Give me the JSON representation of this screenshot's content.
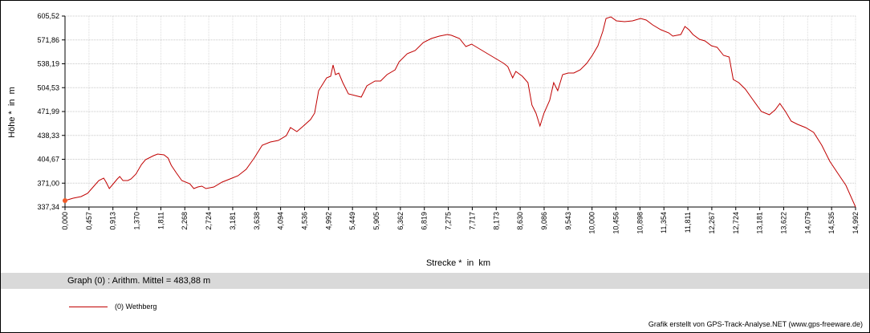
{
  "chart_data": {
    "type": "line",
    "xlabel": "Strecke *  in  km",
    "ylabel": "Höhe *  in  m",
    "xlim": [
      0,
      14.992
    ],
    "ylim": [
      337.34,
      605.52
    ],
    "grid": true,
    "x_ticks": [
      "0,000",
      "0,457",
      "0,913",
      "1,370",
      "1,811",
      "2,268",
      "2,724",
      "3,181",
      "3,638",
      "4,094",
      "4,536",
      "4,992",
      "5,449",
      "5,905",
      "6,362",
      "6,819",
      "7,275",
      "7,717",
      "8,173",
      "8,630",
      "9,086",
      "9,543",
      "10,000",
      "10,456",
      "10,898",
      "11,354",
      "11,811",
      "12,267",
      "12,724",
      "13,181",
      "13,622",
      "14,079",
      "14,535",
      "14,992"
    ],
    "y_ticks": [
      "605,52",
      "571,86",
      "538,19",
      "504,53",
      "471,99",
      "438,33",
      "404,67",
      "371,00",
      "337,34"
    ],
    "series": [
      {
        "name": "(0) Wethberg",
        "color": "#c00000",
        "x": [
          0,
          0.153,
          0.305,
          0.427,
          0.534,
          0.641,
          0.733,
          0.779,
          0.84,
          0.916,
          0.992,
          1.038,
          1.099,
          1.191,
          1.252,
          1.344,
          1.45,
          1.527,
          1.679,
          1.756,
          1.878,
          1.954,
          2.015,
          2.107,
          2.214,
          2.366,
          2.443,
          2.519,
          2.595,
          2.672,
          2.824,
          2.977,
          3.13,
          3.282,
          3.435,
          3.588,
          3.74,
          3.893,
          4.046,
          4.198,
          4.275,
          4.397,
          4.504,
          4.656,
          4.733,
          4.809,
          4.885,
          4.962,
          5.038,
          5.084,
          5.13,
          5.191,
          5.267,
          5.374,
          5.496,
          5.618,
          5.725,
          5.878,
          5.985,
          6.107,
          6.26,
          6.336,
          6.488,
          6.641,
          6.794,
          6.946,
          7.099,
          7.252,
          7.328,
          7.481,
          7.603,
          7.71,
          7.863,
          8.015,
          8.168,
          8.321,
          8.397,
          8.489,
          8.55,
          8.672,
          8.779,
          8.855,
          8.932,
          9.008,
          9.084,
          9.191,
          9.268,
          9.344,
          9.436,
          9.542,
          9.649,
          9.771,
          9.893,
          10.0,
          10.107,
          10.199,
          10.26,
          10.351,
          10.458,
          10.611,
          10.763,
          10.916,
          11.023,
          11.145,
          11.298,
          11.45,
          11.527,
          11.679,
          11.756,
          11.832,
          11.908,
          12.031,
          12.137,
          12.259,
          12.366,
          12.488,
          12.595,
          12.672,
          12.778,
          12.9,
          13.053,
          13.206,
          13.358,
          13.465,
          13.557,
          13.664,
          13.771,
          13.893,
          14.046,
          14.198,
          14.351,
          14.504,
          14.656,
          14.809,
          14.992
        ],
        "y": [
          346.4,
          349.7,
          352.0,
          356.5,
          365.5,
          374.5,
          377.9,
          372.3,
          363.3,
          370.0,
          376.8,
          380.2,
          374.5,
          374.5,
          376.8,
          383.5,
          397.1,
          403.8,
          409.5,
          411.7,
          410.6,
          406.1,
          395.9,
          385.8,
          374.5,
          370.0,
          363.3,
          365.5,
          366.6,
          363.3,
          365.5,
          372.3,
          376.8,
          381.3,
          390.3,
          406.1,
          424.1,
          428.6,
          430.9,
          437.6,
          448.9,
          443.3,
          450.0,
          460.2,
          469.2,
          500.7,
          509.7,
          518.8,
          521.0,
          536.8,
          523.3,
          525.5,
          512.0,
          496.2,
          494.0,
          491.7,
          507.5,
          514.2,
          514.2,
          523.3,
          530.0,
          541.3,
          552.6,
          557.1,
          568.3,
          574.0,
          577.3,
          579.6,
          578.5,
          574.0,
          562.7,
          566.1,
          559.3,
          552.6,
          545.8,
          539.0,
          534.5,
          518.8,
          527.8,
          521.0,
          512.0,
          480.4,
          469.2,
          451.1,
          469.2,
          487.2,
          512.0,
          500.7,
          523.3,
          525.5,
          525.5,
          530.0,
          539.0,
          550.3,
          563.8,
          584.1,
          602.1,
          604.4,
          598.8,
          597.6,
          598.8,
          602.1,
          599.9,
          593.1,
          586.4,
          581.9,
          577.3,
          579.6,
          590.9,
          586.4,
          579.6,
          572.8,
          570.6,
          563.8,
          561.6,
          550.3,
          548.0,
          516.5,
          512.0,
          503.0,
          487.2,
          471.4,
          466.9,
          473.7,
          482.7,
          471.4,
          457.9,
          453.4,
          448.9,
          442.1,
          424.1,
          401.6,
          384.7,
          367.8,
          337.3
        ]
      }
    ],
    "start_marker_color": "#f05a28"
  },
  "summary": "Graph (0) :  Arithm. Mittel = 483,88 m",
  "legend": {
    "label": "(0) Wethberg"
  },
  "credit": "Grafik erstellt von GPS-Track-Analyse.NET (www.gps-freeware.de)"
}
